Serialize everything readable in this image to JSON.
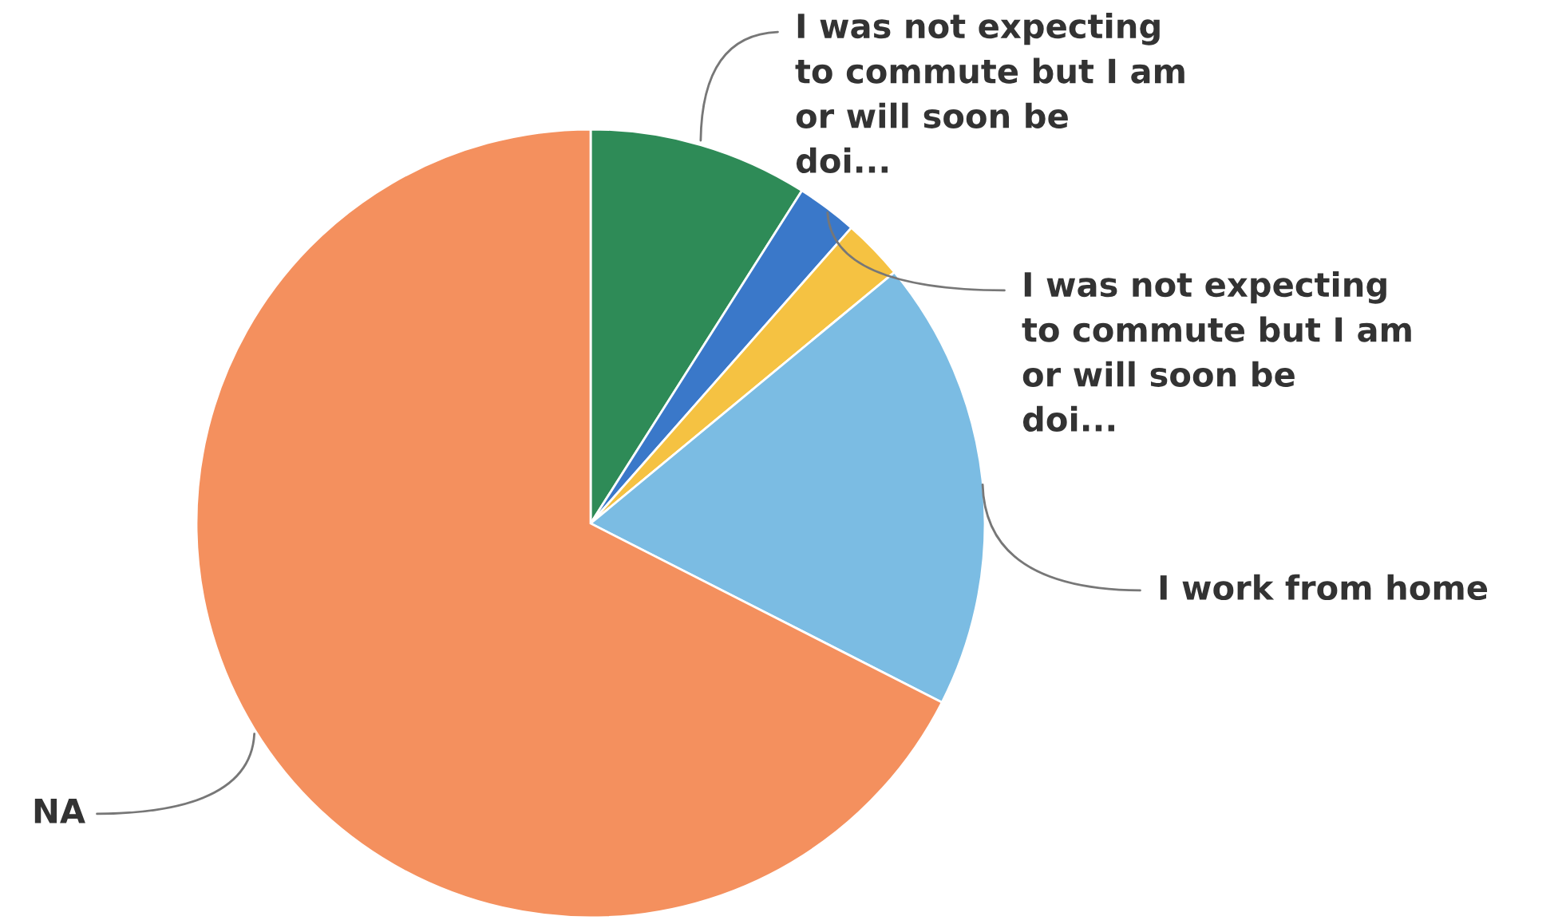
{
  "chart_data": {
    "type": "pie",
    "categories": [
      "I was not expecting to commute but I am or will soon be doi...",
      "I was not expecting to commute but I am or will soon be doi...",
      null,
      "I work from home",
      "NA"
    ],
    "values": [
      9,
      2.5,
      2.5,
      18.5,
      67.5
    ],
    "colors": [
      "#2e8b57",
      "#3a78c9",
      "#f5c242",
      "#7bbce3",
      "#f4905e"
    ],
    "legend": false
  }
}
